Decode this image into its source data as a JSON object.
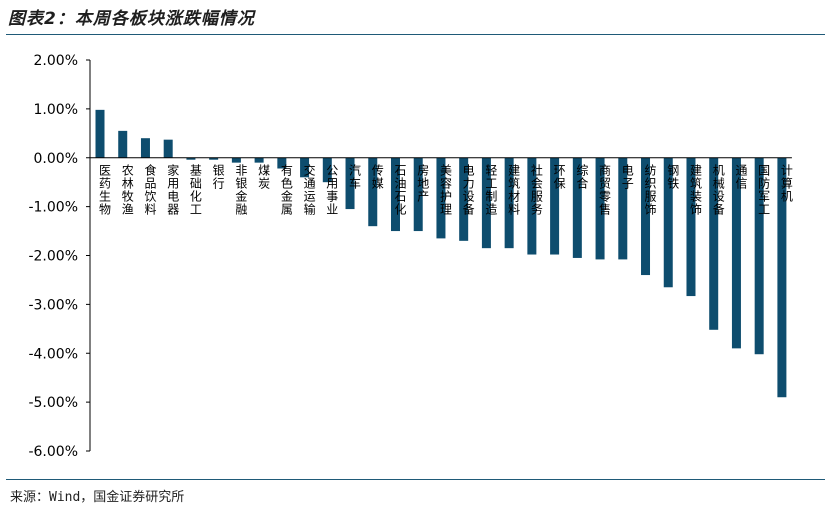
{
  "figure": {
    "title": "图表2：本周各板块涨跌幅情况",
    "source": "来源：Wind，国金证券研究所"
  },
  "chart_data": {
    "type": "bar",
    "categories": [
      "医药生物",
      "农林牧渔",
      "食品饮料",
      "家用电器",
      "基础化工",
      "银行",
      "非银金融",
      "煤炭",
      "有色金属",
      "交通运输",
      "公用事业",
      "汽车",
      "传媒",
      "石油石化",
      "房地产",
      "美容护理",
      "电力设备",
      "轻工制造",
      "建筑材料",
      "社会服务",
      "环保",
      "综合",
      "商贸零售",
      "电子",
      "纺织服饰",
      "钢铁",
      "建筑装饰",
      "机械设备",
      "通信",
      "国防军工",
      "计算机"
    ],
    "values": [
      0.98,
      0.55,
      0.4,
      0.37,
      -0.04,
      -0.04,
      -0.1,
      -0.1,
      -0.22,
      -0.4,
      -0.5,
      -1.05,
      -1.4,
      -1.5,
      -1.5,
      -1.65,
      -1.7,
      -1.85,
      -1.85,
      -1.98,
      -1.98,
      -2.05,
      -2.08,
      -2.08,
      -2.4,
      -2.65,
      -2.83,
      -3.52,
      -3.9,
      -4.02,
      -4.9
    ],
    "yticks": [
      "2.00%",
      "1.00%",
      "0.00%",
      "-1.00%",
      "-2.00%",
      "-3.00%",
      "-4.00%",
      "-5.00%",
      "-6.00%"
    ],
    "ylim": [
      -6,
      2
    ],
    "bar_color": "#0e4d6e",
    "xlabel": "",
    "ylabel": "",
    "grid": false,
    "legend": "none"
  }
}
